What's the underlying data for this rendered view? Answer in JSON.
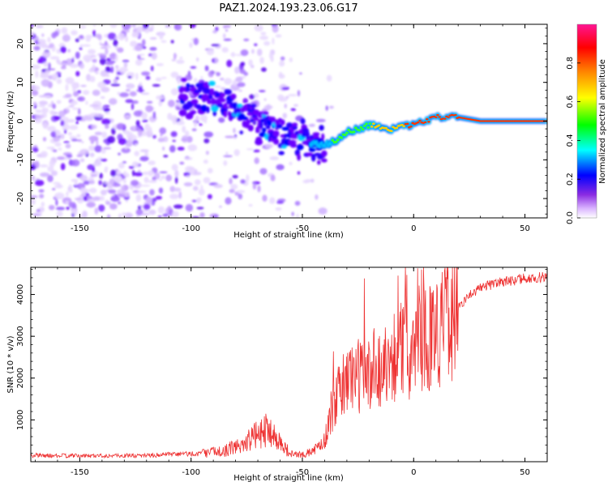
{
  "figure": {
    "title": "PAZ1.2024.193.23.06.G17"
  },
  "chart_data": [
    {
      "type": "heatmap",
      "xlabel": "Height of straight line (km)",
      "ylabel": "Frequency (Hz)",
      "xlim": [
        -172,
        60
      ],
      "ylim": [
        -25,
        25
      ],
      "x_ticks": [
        -150,
        -100,
        -50,
        0,
        50
      ],
      "y_ticks": [
        -20,
        -10,
        0,
        10,
        20
      ],
      "colorbar": {
        "label": "Normalized spectral amplitude",
        "range": [
          0,
          1
        ],
        "ticks": [
          "0.0",
          "0.2",
          "0.4",
          "0.6",
          "0.8"
        ],
        "colors": [
          "#ffffff",
          "#8a2be2",
          "#0000ff",
          "#00ffff",
          "#00ff00",
          "#ffff00",
          "#ff8000",
          "#ff0000",
          "#ff1493"
        ]
      },
      "ridge": {
        "x": [
          -100,
          -90,
          -80,
          -70,
          -60,
          -50,
          -42,
          -38,
          -30,
          -20,
          -10,
          0,
          10,
          20,
          30,
          40,
          50,
          60
        ],
        "y": [
          6,
          5,
          3,
          0,
          -3,
          -5,
          -6,
          -6,
          -3,
          -1,
          -2,
          -1,
          1,
          1,
          0,
          0,
          0,
          0
        ]
      }
    },
    {
      "type": "line",
      "xlabel": "Height of straight line (km)",
      "ylabel": "SNR (10 * v/v)",
      "xlim": [
        -172,
        60
      ],
      "ylim": [
        0,
        4650
      ],
      "x_ticks": [
        -150,
        -100,
        -50,
        0,
        50
      ],
      "y_ticks": [
        1000,
        2000,
        3000,
        4000
      ],
      "color": "#ee3333",
      "envelope": {
        "x": [
          -172,
          -150,
          -120,
          -95,
          -85,
          -78,
          -70,
          -65,
          -60,
          -55,
          -50,
          -45,
          -40,
          -37,
          -32,
          -28,
          -22,
          -15,
          -10,
          -5,
          0,
          5,
          10,
          15,
          20,
          25,
          30,
          40,
          50,
          60
        ],
        "y": [
          150,
          140,
          150,
          200,
          260,
          400,
          650,
          800,
          450,
          180,
          160,
          260,
          500,
          1200,
          1800,
          2100,
          2050,
          2200,
          2500,
          2700,
          2650,
          3000,
          3100,
          3300,
          3700,
          4000,
          4150,
          4300,
          4380,
          4420
        ]
      }
    }
  ]
}
